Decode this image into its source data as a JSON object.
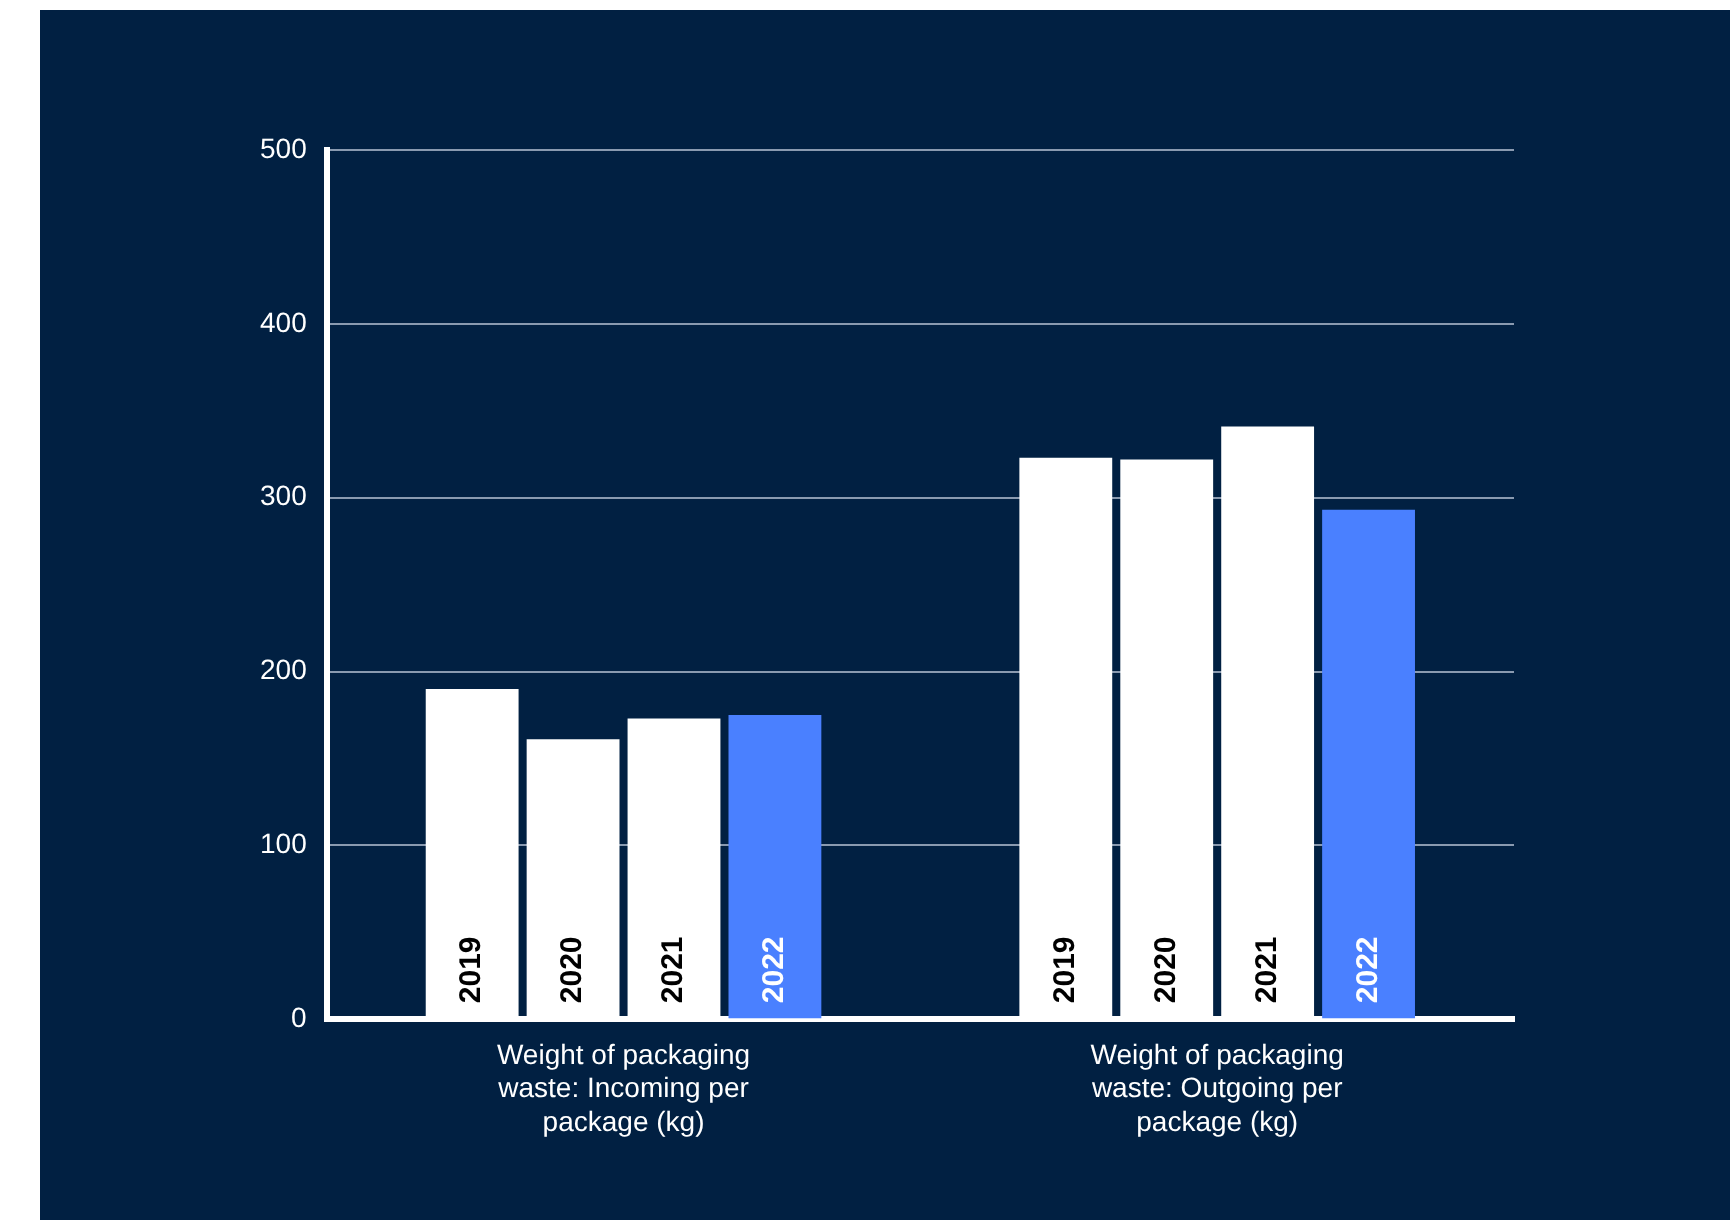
{
  "chart_data": {
    "type": "bar",
    "categories": [
      "Weight of packaging waste: Incoming per package (kg)",
      "Weight of packaging waste: Outgoing per package (kg)"
    ],
    "series": [
      {
        "name": "2019",
        "color": "#ffffff",
        "values": [
          190,
          323
        ]
      },
      {
        "name": "2020",
        "color": "#ffffff",
        "values": [
          161,
          322
        ]
      },
      {
        "name": "2021",
        "color": "#ffffff",
        "values": [
          173,
          341
        ]
      },
      {
        "name": "2022",
        "color": "#4a80ff",
        "values": [
          175,
          293
        ]
      }
    ],
    "ylim": [
      0,
      500
    ],
    "yticks": [
      0,
      100,
      200,
      300,
      400,
      500
    ],
    "grid": "y",
    "legend": false
  }
}
